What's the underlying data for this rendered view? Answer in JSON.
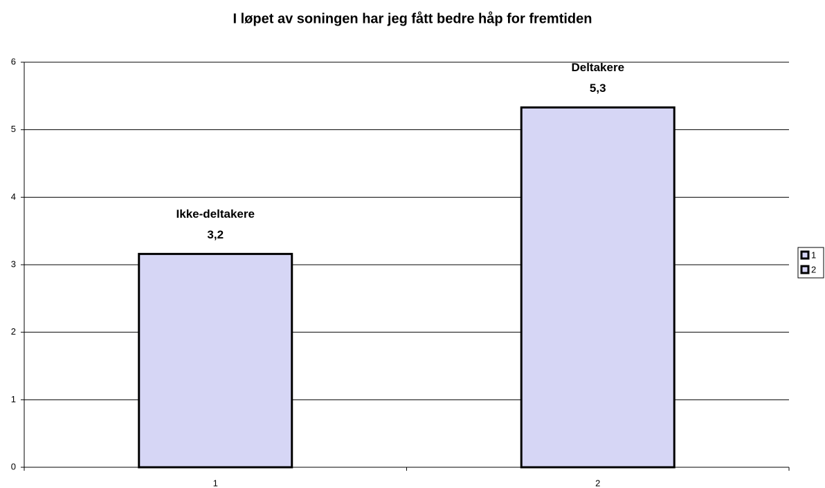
{
  "chart_data": {
    "type": "bar",
    "title": "I løpet av soningen har jeg fått bedre håp for fremtiden",
    "categories": [
      "1",
      "2"
    ],
    "values": [
      3.16,
      5.33
    ],
    "value_labels": [
      "3,2",
      "5,3"
    ],
    "bar_labels": [
      "Ikke-deltakere",
      "Deltakere"
    ],
    "color": "#d6d6f5",
    "ylim": [
      0,
      6
    ],
    "yticks": [
      0,
      1,
      2,
      3,
      4,
      5,
      6
    ],
    "grid": true,
    "legend": "right"
  }
}
